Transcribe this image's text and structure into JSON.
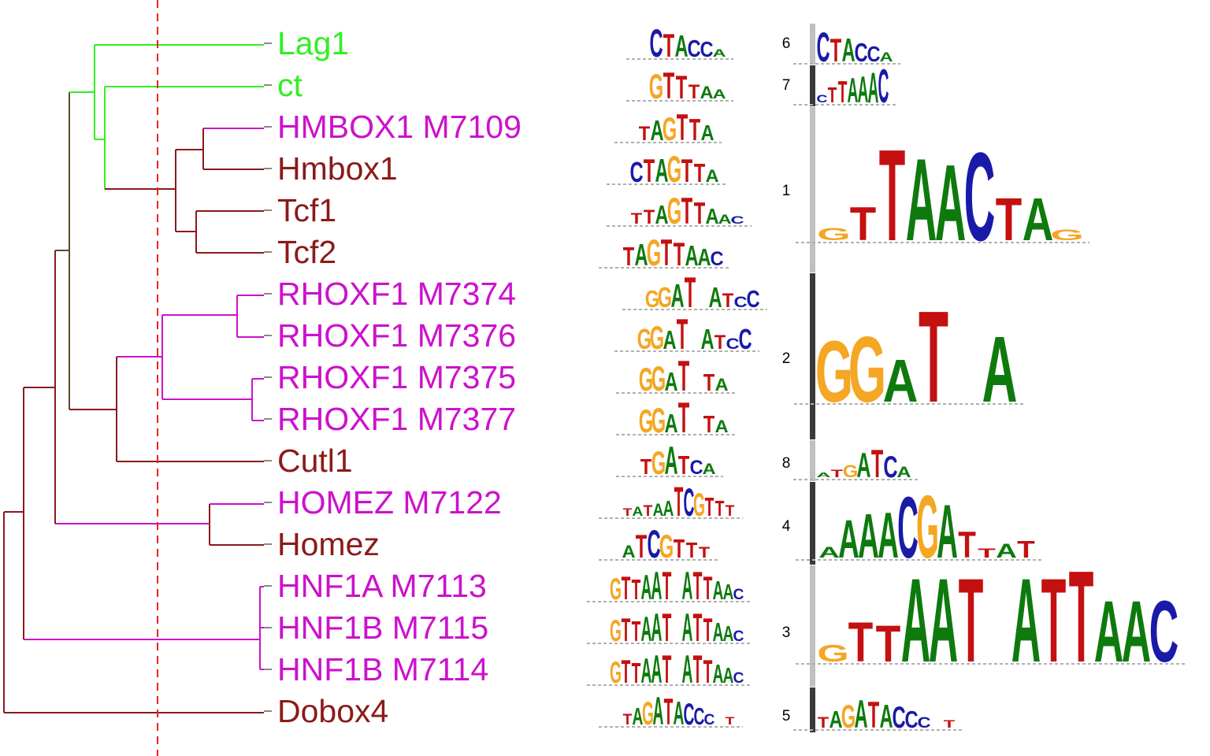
{
  "colors": {
    "family_green": "#33ee22",
    "family_magenta": "#cc11cc",
    "family_maroon": "#8b1a1a",
    "cut_line": "#ee2222",
    "bar_light": "#c0c0c0",
    "bar_dark": "#3a3a3a",
    "base_A": "#0e7a0e",
    "base_C": "#1a1aa8",
    "base_G": "#f5a623",
    "base_T": "#c41010"
  },
  "leaves": [
    {
      "label": "Lag1",
      "color": "#33ee22"
    },
    {
      "label": "ct",
      "color": "#33ee22"
    },
    {
      "label": "HMBOX1 M7109",
      "color": "#cc11cc"
    },
    {
      "label": "Hmbox1",
      "color": "#8b1a1a"
    },
    {
      "label": "Tcf1",
      "color": "#8b1a1a"
    },
    {
      "label": "Tcf2",
      "color": "#8b1a1a"
    },
    {
      "label": "RHOXF1 M7374",
      "color": "#cc11cc"
    },
    {
      "label": "RHOXF1 M7376",
      "color": "#cc11cc"
    },
    {
      "label": "RHOXF1 M7375",
      "color": "#cc11cc"
    },
    {
      "label": "RHOXF1 M7377",
      "color": "#cc11cc"
    },
    {
      "label": "Cutl1",
      "color": "#8b1a1a"
    },
    {
      "label": "HOMEZ M7122",
      "color": "#cc11cc"
    },
    {
      "label": "Homez",
      "color": "#8b1a1a"
    },
    {
      "label": "HNF1A M7113",
      "color": "#cc11cc"
    },
    {
      "label": "HNF1B M7115",
      "color": "#cc11cc"
    },
    {
      "label": "HNF1B M7114",
      "color": "#cc11cc"
    },
    {
      "label": "Dobox4",
      "color": "#8b1a1a"
    }
  ],
  "leaf_logos": [
    "CTACCA",
    "GTTTAA",
    "TAGTTA",
    "CTAGTTA",
    "TTAGTTAAC",
    "TAGTTAAC",
    "GGAT ATCC",
    "GGAT ATCC",
    "GGAT TA",
    "GGAT TA",
    "TGATCA",
    "TATAATCGTTT",
    "ATCGTTT",
    "GTTAAT ATTAAC",
    "GTTAAT ATTAAC",
    "GTTAAT ATTAAC",
    "TAGATACCC T"
  ],
  "clusters": [
    {
      "number": "6",
      "consensus": "CTACCA"
    },
    {
      "number": "7",
      "consensus": "CTTAAAC"
    },
    {
      "number": "1",
      "consensus": "GTTAACTAG"
    },
    {
      "number": "2",
      "consensus": "GGAT A"
    },
    {
      "number": "8",
      "consensus": "ATGATCA"
    },
    {
      "number": "4",
      "consensus": "AAAACGATTAT"
    },
    {
      "number": "3",
      "consensus": "GTTAAT ATTAAC"
    },
    {
      "number": "5",
      "consensus": "TAGATACCC T"
    }
  ]
}
